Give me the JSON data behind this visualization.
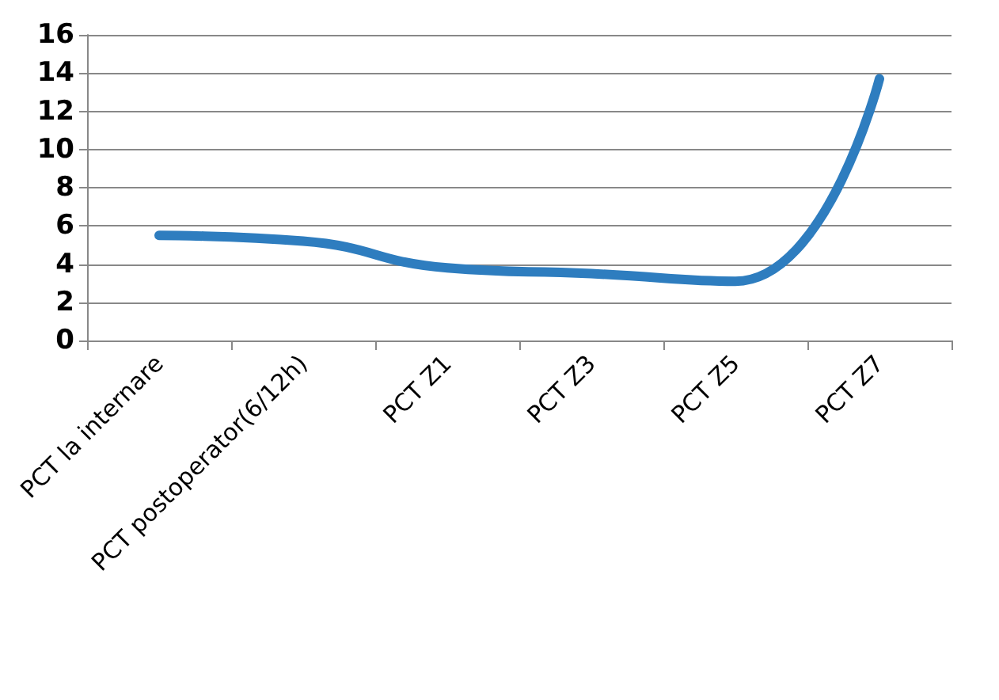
{
  "chart_data": {
    "type": "line",
    "categories": [
      "PCT la internare",
      "PCT postoperator(6/12h)",
      "PCT Z1",
      "PCT Z3",
      "PCT Z5",
      "PCT Z7"
    ],
    "series": [
      {
        "color": "#2e7dbf",
        "values": [
          5.5,
          5.2,
          3.8,
          3.5,
          3.1,
          13.7
        ]
      }
    ],
    "ylim": [
      0,
      16
    ],
    "yticks": [
      0,
      2,
      4,
      6,
      8,
      10,
      12,
      14,
      16
    ],
    "grid": "y",
    "marker": "none",
    "line_style": "solid"
  }
}
